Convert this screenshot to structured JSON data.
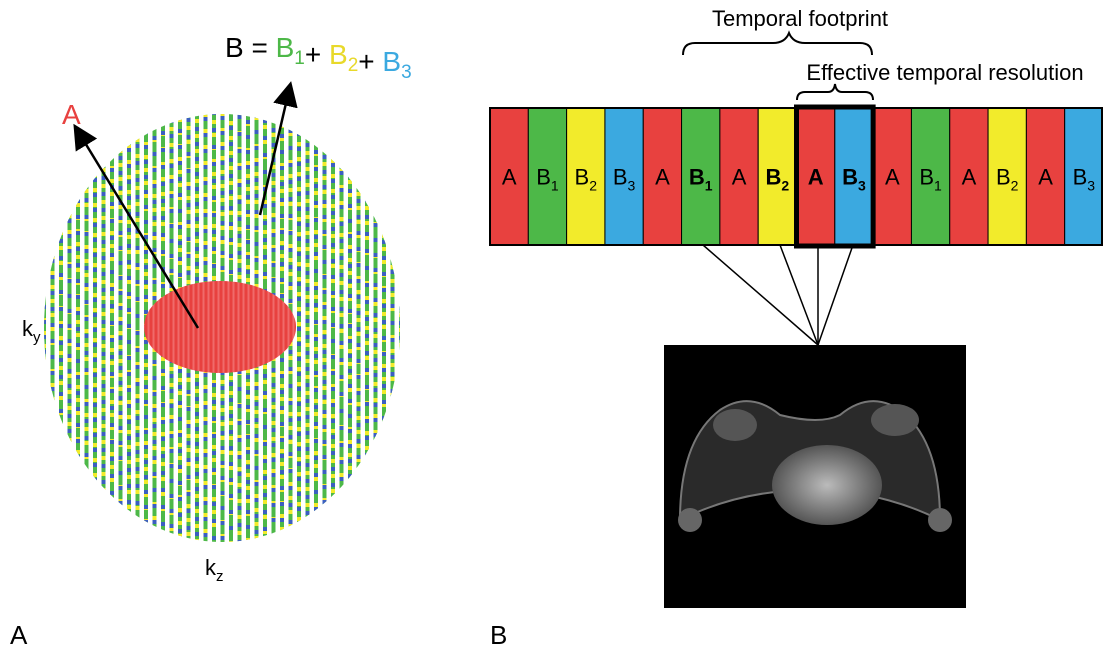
{
  "panel_a": {
    "label": "A",
    "region_a": "A",
    "equation": [
      {
        "text": "B = ",
        "color": "#000000"
      },
      {
        "text": "B",
        "sub": "1",
        "color": "#4db848"
      },
      {
        "text": "+ ",
        "color": "#000000"
      },
      {
        "text": "B",
        "sub": "2",
        "color": "#e8d92a"
      },
      {
        "text": "+ ",
        "color": "#000000"
      },
      {
        "text": "B",
        "sub": "3",
        "color": "#3ba9e0"
      }
    ],
    "ky": {
      "text": "k",
      "sub": "y"
    },
    "kz": {
      "text": "k",
      "sub": "z"
    }
  },
  "panel_b": {
    "label": "B",
    "temporal_footprint": "Temporal footprint",
    "effective_resolution": "Effective temporal resolution",
    "cells": [
      {
        "text": "A",
        "color": "#e8413f"
      },
      {
        "text": "B",
        "sub": "1",
        "color": "#4db848"
      },
      {
        "text": "B",
        "sub": "2",
        "color": "#f2eb2b"
      },
      {
        "text": "B",
        "sub": "3",
        "color": "#3ba9e0"
      },
      {
        "text": "A",
        "color": "#e8413f"
      },
      {
        "text": "B",
        "sub": "1",
        "color": "#4db848",
        "bold": true
      },
      {
        "text": "A",
        "color": "#e8413f"
      },
      {
        "text": "B",
        "sub": "2",
        "color": "#f2eb2b",
        "bold": true
      },
      {
        "text": "A",
        "color": "#e8413f",
        "bold": true
      },
      {
        "text": "B",
        "sub": "3",
        "color": "#3ba9e0",
        "bold": true
      },
      {
        "text": "A",
        "color": "#e8413f"
      },
      {
        "text": "B",
        "sub": "1",
        "color": "#4db848"
      },
      {
        "text": "A",
        "color": "#e8413f"
      },
      {
        "text": "B",
        "sub": "2",
        "color": "#f2eb2b"
      },
      {
        "text": "A",
        "color": "#e8413f"
      },
      {
        "text": "B",
        "sub": "3",
        "color": "#3ba9e0"
      }
    ]
  }
}
